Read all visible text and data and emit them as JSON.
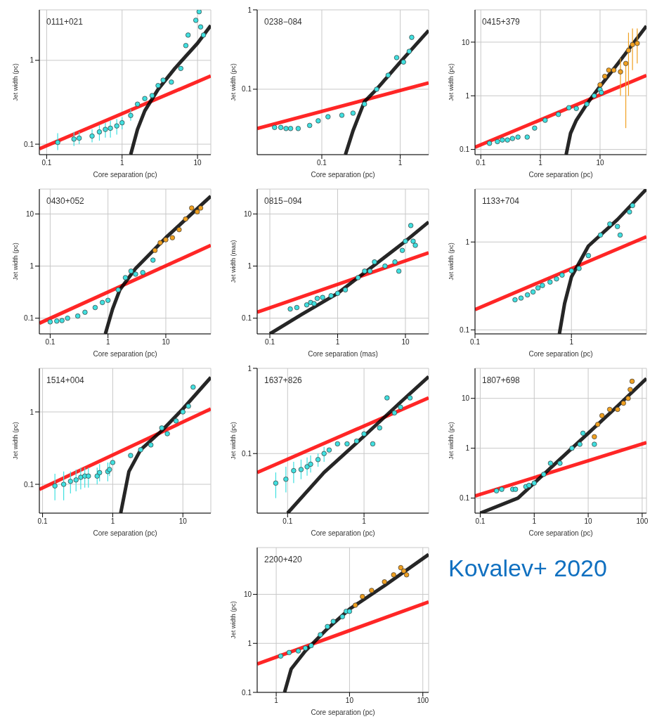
{
  "chart_data": [
    {
      "type": "scatter",
      "title": "0111+021",
      "xlabel": "Core separation (pc)",
      "ylabel": "Jet width (pc)",
      "log": "xy",
      "xlim": [
        0.08,
        15
      ],
      "ylim": [
        0.075,
        4
      ],
      "xticks": [
        0.1,
        1,
        10
      ],
      "yticks": [
        0.1,
        1
      ],
      "grid": true,
      "marker": "circle",
      "series": [
        {
          "type": "line",
          "marker": "none",
          "color": "#ff0000",
          "x": [
            0.08,
            15
          ],
          "values": [
            0.088,
            0.65
          ]
        },
        {
          "type": "line",
          "marker": "none",
          "color": "#000000",
          "x": [
            1.3,
            1.6,
            2,
            3,
            5,
            10,
            15
          ],
          "values": [
            0.075,
            0.15,
            0.25,
            0.45,
            0.8,
            1.6,
            2.6
          ]
        },
        {
          "color": "#40e0e0",
          "x": [
            0.14,
            0.23,
            0.27,
            0.4,
            0.5,
            0.6,
            0.7,
            0.85,
            1,
            1.3,
            1.6,
            2,
            2.5,
            3,
            3.5,
            4.5,
            6,
            7,
            7.5,
            9.5,
            10.5,
            11,
            12
          ],
          "values": [
            0.105,
            0.115,
            0.118,
            0.125,
            0.14,
            0.15,
            0.155,
            0.165,
            0.18,
            0.22,
            0.3,
            0.35,
            0.38,
            0.5,
            0.58,
            0.55,
            0.8,
            1.5,
            2,
            3,
            3.8,
            2.5,
            2
          ],
          "errors": [
            [
              0.085,
              0.135
            ],
            [
              0.095,
              0.14
            ],
            [
              0.1,
              0.14
            ],
            [
              0.105,
              0.15
            ],
            [
              0.11,
              0.17
            ],
            [
              0.12,
              0.18
            ],
            [
              0.12,
              0.19
            ],
            [
              0.13,
              0.2
            ],
            [
              0.15,
              0.21
            ],
            [
              0.19,
              0.26
            ],
            null,
            null,
            null,
            null,
            null,
            null,
            null,
            null,
            null,
            null,
            null,
            null,
            null
          ]
        }
      ]
    },
    {
      "type": "scatter",
      "title": "0238−084",
      "xlabel": "Core separation (pc)",
      "ylabel": "Jet width (pc)",
      "log": "xy",
      "xlim": [
        0.015,
        2.3
      ],
      "ylim": [
        0.015,
        1
      ],
      "xticks": [
        0.1,
        1
      ],
      "yticks": [
        0.1,
        1
      ],
      "grid": true,
      "marker": "circle",
      "series": [
        {
          "type": "line",
          "marker": "none",
          "color": "#ff0000",
          "x": [
            0.015,
            2.3
          ],
          "values": [
            0.032,
            0.12
          ]
        },
        {
          "type": "line",
          "marker": "none",
          "color": "#000000",
          "x": [
            0.2,
            0.25,
            0.35,
            0.5,
            1,
            2.3
          ],
          "values": [
            0.015,
            0.03,
            0.07,
            0.1,
            0.22,
            0.55
          ]
        },
        {
          "color": "#40e0e0",
          "x": [
            0.025,
            0.03,
            0.035,
            0.04,
            0.05,
            0.07,
            0.09,
            0.12,
            0.18,
            0.25,
            0.35,
            0.5,
            0.7,
            0.9,
            1.1,
            1.3,
            1.4
          ],
          "values": [
            0.033,
            0.033,
            0.032,
            0.032,
            0.032,
            0.035,
            0.04,
            0.045,
            0.047,
            0.05,
            0.065,
            0.1,
            0.15,
            0.25,
            0.22,
            0.3,
            0.45
          ]
        }
      ]
    },
    {
      "type": "scatter",
      "title": "0415+379",
      "xlabel": "Core separation (pc)",
      "ylabel": "Jet width (pc)",
      "log": "xy",
      "xlim": [
        0.08,
        60
      ],
      "ylim": [
        0.08,
        40
      ],
      "xticks": [
        0.1,
        1,
        10
      ],
      "yticks": [
        0.1,
        1,
        10
      ],
      "grid": true,
      "marker": "circle",
      "series": [
        {
          "type": "line",
          "marker": "none",
          "color": "#ff0000",
          "x": [
            0.08,
            60
          ],
          "values": [
            0.11,
            2.4
          ]
        },
        {
          "type": "line",
          "marker": "none",
          "color": "#000000",
          "x": [
            2.7,
            3.2,
            4,
            6,
            10,
            20,
            60
          ],
          "values": [
            0.08,
            0.2,
            0.35,
            0.7,
            1.5,
            4,
            20
          ]
        },
        {
          "color": "#40e0e0",
          "x": [
            0.14,
            0.19,
            0.23,
            0.28,
            0.34,
            0.42,
            0.6,
            0.8,
            1.2,
            2,
            3,
            4,
            6,
            8,
            10,
            10.5
          ],
          "values": [
            0.13,
            0.14,
            0.15,
            0.15,
            0.16,
            0.17,
            0.17,
            0.25,
            0.35,
            0.45,
            0.6,
            0.58,
            0.7,
            1,
            1.3,
            1.15
          ]
        },
        {
          "color": "#f0a020",
          "x": [
            10,
            12,
            14,
            17,
            22,
            27,
            30,
            35,
            42
          ],
          "values": [
            1.6,
            2.3,
            3,
            3,
            2.8,
            4,
            7,
            9,
            9.5
          ],
          "errors": [
            null,
            null,
            null,
            null,
            [
              1,
              5
            ],
            [
              0.25,
              4
            ],
            [
              1,
              15
            ],
            [
              3,
              18
            ],
            [
              4,
              18
            ]
          ]
        }
      ]
    },
    {
      "type": "scatter",
      "title": "0430+052",
      "xlabel": "Core separation (pc)",
      "ylabel": "Jet width (pc)",
      "log": "xy",
      "xlim": [
        0.065,
        60
      ],
      "ylim": [
        0.05,
        30
      ],
      "xticks": [
        0.1,
        1,
        10
      ],
      "yticks": [
        0.1,
        1,
        10
      ],
      "grid": true,
      "marker": "circle",
      "series": [
        {
          "type": "line",
          "marker": "none",
          "color": "#ff0000",
          "x": [
            0.065,
            60
          ],
          "values": [
            0.08,
            2.5
          ]
        },
        {
          "type": "line",
          "marker": "none",
          "color": "#000000",
          "x": [
            0.9,
            1.2,
            1.6,
            3,
            10,
            60
          ],
          "values": [
            0.05,
            0.15,
            0.35,
            0.9,
            3.5,
            22
          ]
        },
        {
          "color": "#40e0e0",
          "x": [
            0.1,
            0.13,
            0.16,
            0.2,
            0.3,
            0.4,
            0.6,
            0.8,
            1,
            1.5,
            2,
            2.5,
            3,
            4,
            6
          ],
          "values": [
            0.085,
            0.088,
            0.09,
            0.1,
            0.11,
            0.13,
            0.16,
            0.2,
            0.22,
            0.35,
            0.6,
            0.8,
            0.7,
            0.75,
            1.3
          ]
        },
        {
          "color": "#f0a020",
          "x": [
            6.5,
            8,
            10,
            13,
            17,
            22,
            28,
            35,
            40
          ],
          "values": [
            2,
            2.8,
            3.2,
            3.5,
            5,
            8,
            13,
            11,
            13
          ]
        }
      ]
    },
    {
      "type": "scatter",
      "title": "0815−094",
      "xlabel": "Core separation (mas)",
      "ylabel": "Jet width (mas)",
      "log": "xy",
      "xlim": [
        0.065,
        22
      ],
      "ylim": [
        0.05,
        30
      ],
      "xticks": [
        0.1,
        1,
        10
      ],
      "yticks": [
        0.1,
        1,
        10
      ],
      "grid": true,
      "marker": "circle",
      "series": [
        {
          "type": "line",
          "marker": "none",
          "color": "#ff0000",
          "x": [
            0.065,
            22
          ],
          "values": [
            0.13,
            1.8
          ]
        },
        {
          "type": "line",
          "marker": "none",
          "color": "#000000",
          "x": [
            0.1,
            0.3,
            1,
            3,
            10,
            22
          ],
          "values": [
            0.05,
            0.12,
            0.3,
            0.9,
            3,
            7
          ]
        },
        {
          "color": "#40e0e0",
          "x": [
            0.2,
            0.25,
            0.35,
            0.4,
            0.45,
            0.5,
            0.6,
            0.8,
            1,
            1.3,
            2,
            2.5,
            3,
            3.5,
            5,
            7,
            8,
            9,
            10,
            12,
            13,
            14
          ],
          "values": [
            0.15,
            0.16,
            0.18,
            0.2,
            0.19,
            0.24,
            0.25,
            0.27,
            0.3,
            0.35,
            0.6,
            0.8,
            0.8,
            1.2,
            1,
            1.2,
            0.8,
            2,
            3,
            6,
            3,
            2.5
          ]
        }
      ]
    },
    {
      "type": "scatter",
      "title": "1133+704",
      "xlabel": "Core separation (pc)",
      "ylabel": "Jet width (pc)",
      "log": "xy",
      "xlim": [
        0.1,
        6
      ],
      "ylim": [
        0.09,
        4
      ],
      "xticks": [
        0.1,
        1
      ],
      "yticks": [
        0.1,
        1
      ],
      "grid": true,
      "marker": "circle",
      "series": [
        {
          "type": "line",
          "marker": "none",
          "color": "#ff0000",
          "x": [
            0.1,
            6
          ],
          "values": [
            0.17,
            1.15
          ]
        },
        {
          "type": "line",
          "marker": "none",
          "color": "#000000",
          "x": [
            0.75,
            0.85,
            1,
            1.5,
            3,
            6
          ],
          "values": [
            0.09,
            0.2,
            0.4,
            0.9,
            1.8,
            4
          ]
        },
        {
          "color": "#40e0e0",
          "x": [
            0.26,
            0.3,
            0.35,
            0.4,
            0.45,
            0.5,
            0.6,
            0.7,
            0.8,
            1,
            1.2,
            1.5,
            2,
            2.5,
            3,
            3.2,
            4,
            4.3
          ],
          "values": [
            0.22,
            0.23,
            0.25,
            0.27,
            0.3,
            0.32,
            0.35,
            0.38,
            0.42,
            0.47,
            0.5,
            0.7,
            1.2,
            1.6,
            1.5,
            1.2,
            2.2,
            2.6
          ]
        }
      ]
    },
    {
      "type": "scatter",
      "title": "1514+004",
      "xlabel": "Core separation (pc)",
      "ylabel": "Jet width (pc)",
      "log": "xy",
      "xlim": [
        0.09,
        25
      ],
      "ylim": [
        0.04,
        4
      ],
      "xticks": [
        0.1,
        1,
        10
      ],
      "yticks": [
        0.1,
        1
      ],
      "grid": true,
      "marker": "circle",
      "series": [
        {
          "type": "line",
          "marker": "none",
          "color": "#ff0000",
          "x": [
            0.09,
            25
          ],
          "values": [
            0.085,
            1.1
          ]
        },
        {
          "type": "line",
          "marker": "none",
          "color": "#000000",
          "x": [
            1.3,
            1.7,
            2.5,
            5,
            10,
            25
          ],
          "values": [
            0.04,
            0.15,
            0.3,
            0.55,
            1.1,
            3
          ]
        },
        {
          "color": "#40e0e0",
          "x": [
            0.15,
            0.2,
            0.25,
            0.3,
            0.35,
            0.4,
            0.45,
            0.6,
            0.65,
            0.85,
            0.9,
            1,
            1.8,
            2.5,
            3.5,
            5,
            6,
            8,
            10,
            12,
            14
          ],
          "values": [
            0.095,
            0.1,
            0.11,
            0.115,
            0.125,
            0.13,
            0.13,
            0.13,
            0.145,
            0.15,
            0.16,
            0.2,
            0.25,
            0.3,
            0.35,
            0.6,
            0.5,
            0.75,
            1,
            1.2,
            2.2
          ],
          "errors": [
            [
              0.06,
              0.14
            ],
            [
              0.06,
              0.15
            ],
            [
              0.075,
              0.15
            ],
            [
              0.08,
              0.16
            ],
            [
              0.085,
              0.17
            ],
            [
              0.09,
              0.17
            ],
            [
              0.09,
              0.17
            ],
            [
              0.1,
              0.17
            ],
            [
              0.11,
              0.19
            ],
            [
              0.11,
              0.2
            ],
            [
              0.13,
              0.2
            ],
            null,
            null,
            null,
            null,
            null,
            null,
            null,
            null,
            null,
            null
          ]
        }
      ]
    },
    {
      "type": "scatter",
      "title": "1637+826",
      "xlabel": "Core separation (pc)",
      "ylabel": "Jet width (pc)",
      "log": "xy",
      "xlim": [
        0.04,
        7
      ],
      "ylim": [
        0.02,
        1
      ],
      "xticks": [
        0.1,
        1
      ],
      "yticks": [
        0.1,
        1
      ],
      "grid": true,
      "marker": "circle",
      "series": [
        {
          "type": "line",
          "marker": "none",
          "color": "#ff0000",
          "x": [
            0.04,
            7
          ],
          "values": [
            0.06,
            0.45
          ]
        },
        {
          "type": "line",
          "marker": "none",
          "color": "#000000",
          "x": [
            0.1,
            0.3,
            1,
            3,
            7
          ],
          "values": [
            0.02,
            0.06,
            0.16,
            0.4,
            0.8
          ]
        },
        {
          "color": "#40e0e0",
          "x": [
            0.07,
            0.095,
            0.12,
            0.15,
            0.18,
            0.2,
            0.25,
            0.3,
            0.35,
            0.45,
            0.6,
            0.8,
            1,
            1.3,
            1.6,
            2,
            2.5,
            3,
            4
          ],
          "values": [
            0.045,
            0.05,
            0.063,
            0.065,
            0.07,
            0.075,
            0.085,
            0.1,
            0.11,
            0.13,
            0.13,
            0.14,
            0.17,
            0.13,
            0.2,
            0.45,
            0.3,
            0.35,
            0.45
          ],
          "errors": [
            [
              0.03,
              0.06
            ],
            [
              0.035,
              0.07
            ],
            [
              0.045,
              0.08
            ],
            [
              0.05,
              0.085
            ],
            [
              0.055,
              0.09
            ],
            [
              0.06,
              0.095
            ],
            [
              0.07,
              0.1
            ],
            [
              0.08,
              0.12
            ],
            null,
            null,
            null,
            null,
            null,
            null,
            null,
            null,
            null,
            null,
            null
          ]
        }
      ]
    },
    {
      "type": "scatter",
      "title": "1807+698",
      "xlabel": "Core separation (pc)",
      "ylabel": "Jet width (pc)",
      "log": "xy",
      "xlim": [
        0.08,
        120
      ],
      "ylim": [
        0.05,
        40
      ],
      "xticks": [
        0.1,
        1,
        10,
        100
      ],
      "yticks": [
        0.1,
        1,
        10
      ],
      "grid": true,
      "marker": "circle",
      "series": [
        {
          "type": "line",
          "marker": "none",
          "color": "#ff0000",
          "x": [
            0.08,
            120
          ],
          "values": [
            0.11,
            1.3
          ]
        },
        {
          "type": "line",
          "marker": "none",
          "color": "#000000",
          "x": [
            0.1,
            0.5,
            1,
            3,
            10,
            30,
            120
          ],
          "values": [
            0.05,
            0.1,
            0.2,
            0.6,
            2,
            6,
            25
          ]
        },
        {
          "color": "#40e0e0",
          "x": [
            0.2,
            0.25,
            0.4,
            0.45,
            0.7,
            0.8,
            1,
            1.5,
            2,
            3,
            5,
            7,
            8,
            13
          ],
          "values": [
            0.14,
            0.15,
            0.15,
            0.15,
            0.17,
            0.18,
            0.2,
            0.3,
            0.5,
            0.5,
            1,
            1.2,
            2,
            1.2
          ]
        },
        {
          "color": "#f0a020",
          "x": [
            13,
            15,
            18,
            25,
            35,
            45,
            55,
            60,
            65
          ],
          "values": [
            1.7,
            3,
            4.5,
            6,
            6,
            8,
            10,
            15,
            22
          ]
        }
      ]
    },
    {
      "type": "scatter",
      "title": "2200+420",
      "xlabel": "Core separation (pc)",
      "ylabel": "Jet width (pc)",
      "log": "xy",
      "xlim": [
        0.55,
        120
      ],
      "ylim": [
        0.1,
        90
      ],
      "xticks": [
        1,
        10,
        100
      ],
      "yticks": [
        0.1,
        1,
        10
      ],
      "grid": true,
      "marker": "circle",
      "annotations": [
        "Kovalev+ 2020"
      ],
      "series": [
        {
          "type": "line",
          "marker": "none",
          "color": "#ff0000",
          "x": [
            0.55,
            120
          ],
          "values": [
            0.38,
            7
          ]
        },
        {
          "type": "line",
          "marker": "none",
          "color": "#000000",
          "x": [
            1.3,
            1.6,
            2.5,
            5,
            10,
            30,
            120
          ],
          "values": [
            0.1,
            0.3,
            0.7,
            2,
            5,
            15,
            65
          ]
        },
        {
          "color": "#40e0e0",
          "x": [
            1.15,
            1.5,
            2,
            2.5,
            3,
            4,
            5,
            6,
            8,
            9,
            10
          ],
          "values": [
            0.55,
            0.65,
            0.7,
            0.8,
            0.9,
            1.5,
            2.2,
            2.8,
            3.5,
            4.5,
            4.5
          ]
        },
        {
          "color": "#f0a020",
          "x": [
            12,
            15,
            20,
            30,
            40,
            50,
            55,
            60
          ],
          "values": [
            6,
            9,
            12,
            18,
            25,
            35,
            30,
            25
          ]
        }
      ]
    }
  ]
}
